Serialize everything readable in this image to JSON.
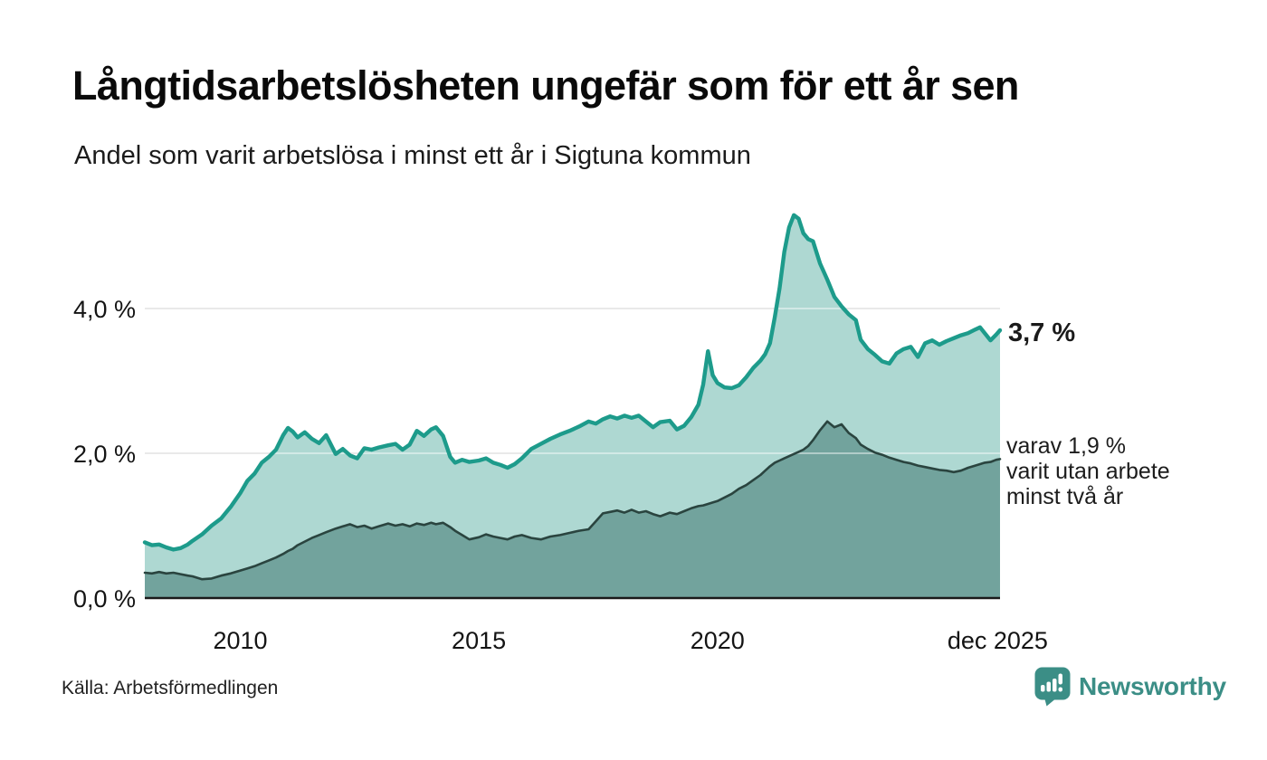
{
  "header": {
    "title": "Långtidsarbetslösheten ungefär som för ett år sen",
    "subtitle": "Andel som varit arbetslösa i minst ett år i Sigtuna kommun"
  },
  "annotations": {
    "latest_value": "3,7 %",
    "secondary": "varav 1,9 %\nvarit utan arbete\nminst två år"
  },
  "footer": {
    "source": "Källa: Arbetsförmedlingen",
    "brand": "Newsworthy",
    "brand_color": "#3b8e86",
    "logo_icon": "bar-chart-speech-bubble-icon"
  },
  "chart_data": {
    "type": "area",
    "title": "Långtidsarbetslösheten ungefär som för ett år sen",
    "xlabel": "",
    "ylabel": "",
    "xlim": [
      2008.0,
      2025.92
    ],
    "ylim": [
      0,
      5.6
    ],
    "grid": true,
    "gridline_color": "#d8d8d8",
    "axis_color": "#1a1a1a",
    "yticks": [
      {
        "label": "0,0 %",
        "value": 0
      },
      {
        "label": "2,0 %",
        "value": 2
      },
      {
        "label": "4,0 %",
        "value": 4
      }
    ],
    "xticks": [
      {
        "label": "2010",
        "year": 2010
      },
      {
        "label": "2015",
        "year": 2015
      },
      {
        "label": "2020",
        "year": 2020
      },
      {
        "label": "dec 2025",
        "year": 2025.87
      }
    ],
    "x": [
      2008.0,
      2008.15,
      2008.3,
      2008.45,
      2008.6,
      2008.75,
      2008.9,
      2009.0,
      2009.2,
      2009.4,
      2009.6,
      2009.8,
      2010.0,
      2010.15,
      2010.3,
      2010.45,
      2010.6,
      2010.75,
      2010.9,
      2011.0,
      2011.1,
      2011.2,
      2011.35,
      2011.5,
      2011.65,
      2011.8,
      2012.0,
      2012.15,
      2012.3,
      2012.45,
      2012.6,
      2012.75,
      2012.9,
      2013.1,
      2013.25,
      2013.4,
      2013.55,
      2013.7,
      2013.85,
      2014.0,
      2014.1,
      2014.25,
      2014.4,
      2014.5,
      2014.65,
      2014.8,
      2015.0,
      2015.15,
      2015.3,
      2015.45,
      2015.6,
      2015.75,
      2015.9,
      2016.1,
      2016.3,
      2016.5,
      2016.7,
      2016.9,
      2017.1,
      2017.3,
      2017.45,
      2017.6,
      2017.75,
      2017.9,
      2018.05,
      2018.2,
      2018.35,
      2018.5,
      2018.65,
      2018.8,
      2019.0,
      2019.15,
      2019.3,
      2019.45,
      2019.6,
      2019.7,
      2019.8,
      2019.9,
      2020.0,
      2020.15,
      2020.3,
      2020.45,
      2020.6,
      2020.75,
      2020.9,
      2021.0,
      2021.1,
      2021.2,
      2021.3,
      2021.4,
      2021.5,
      2021.6,
      2021.7,
      2021.8,
      2021.9,
      2022.0,
      2022.15,
      2022.3,
      2022.45,
      2022.6,
      2022.75,
      2022.9,
      2023.0,
      2023.15,
      2023.3,
      2023.45,
      2023.6,
      2023.75,
      2023.9,
      2024.05,
      2024.2,
      2024.35,
      2024.5,
      2024.65,
      2024.8,
      2024.95,
      2025.1,
      2025.25,
      2025.4,
      2025.5,
      2025.6,
      2025.72,
      2025.84,
      2025.92
    ],
    "series": [
      {
        "name": "Andel arbetslösa minst ett år",
        "line_color": "#1d9b8b",
        "fill_color": "#aed8d2",
        "latest_label": "3,7 %",
        "values": [
          0.77,
          0.73,
          0.74,
          0.7,
          0.67,
          0.69,
          0.74,
          0.79,
          0.88,
          1.0,
          1.1,
          1.26,
          1.45,
          1.62,
          1.72,
          1.87,
          1.95,
          2.05,
          2.25,
          2.35,
          2.3,
          2.22,
          2.29,
          2.2,
          2.14,
          2.25,
          1.99,
          2.06,
          1.97,
          1.93,
          2.07,
          2.05,
          2.08,
          2.11,
          2.13,
          2.05,
          2.12,
          2.31,
          2.24,
          2.33,
          2.36,
          2.24,
          1.95,
          1.87,
          1.91,
          1.88,
          1.9,
          1.93,
          1.87,
          1.84,
          1.8,
          1.85,
          1.93,
          2.06,
          2.13,
          2.2,
          2.26,
          2.31,
          2.37,
          2.44,
          2.41,
          2.47,
          2.51,
          2.48,
          2.52,
          2.49,
          2.52,
          2.44,
          2.36,
          2.43,
          2.45,
          2.33,
          2.38,
          2.5,
          2.67,
          2.95,
          3.41,
          3.08,
          2.97,
          2.91,
          2.9,
          2.94,
          3.05,
          3.18,
          3.28,
          3.37,
          3.52,
          3.88,
          4.28,
          4.78,
          5.12,
          5.29,
          5.24,
          5.04,
          4.96,
          4.93,
          4.62,
          4.4,
          4.16,
          4.03,
          3.92,
          3.84,
          3.57,
          3.44,
          3.36,
          3.27,
          3.24,
          3.38,
          3.44,
          3.47,
          3.33,
          3.52,
          3.56,
          3.5,
          3.55,
          3.59,
          3.63,
          3.66,
          3.71,
          3.74,
          3.66,
          3.56,
          3.64,
          3.7
        ]
      },
      {
        "name": "Andel arbetslösa minst två år",
        "line_color": "#2a443f",
        "fill_color": "#72a39d",
        "latest_label": "1,9 %",
        "values": [
          0.35,
          0.34,
          0.36,
          0.34,
          0.35,
          0.33,
          0.31,
          0.3,
          0.26,
          0.27,
          0.31,
          0.34,
          0.38,
          0.41,
          0.44,
          0.48,
          0.52,
          0.56,
          0.61,
          0.65,
          0.68,
          0.73,
          0.78,
          0.83,
          0.87,
          0.91,
          0.96,
          0.99,
          1.02,
          0.98,
          1.0,
          0.96,
          0.99,
          1.03,
          1.0,
          1.02,
          0.99,
          1.03,
          1.01,
          1.04,
          1.02,
          1.04,
          0.98,
          0.93,
          0.87,
          0.81,
          0.84,
          0.88,
          0.85,
          0.83,
          0.81,
          0.85,
          0.87,
          0.83,
          0.81,
          0.85,
          0.87,
          0.9,
          0.93,
          0.95,
          1.06,
          1.17,
          1.19,
          1.21,
          1.18,
          1.22,
          1.18,
          1.2,
          1.16,
          1.13,
          1.18,
          1.16,
          1.2,
          1.24,
          1.27,
          1.28,
          1.3,
          1.32,
          1.34,
          1.39,
          1.44,
          1.51,
          1.56,
          1.63,
          1.7,
          1.76,
          1.82,
          1.87,
          1.9,
          1.93,
          1.96,
          1.99,
          2.02,
          2.05,
          2.1,
          2.18,
          2.32,
          2.44,
          2.36,
          2.4,
          2.28,
          2.21,
          2.12,
          2.06,
          2.01,
          1.98,
          1.94,
          1.91,
          1.88,
          1.86,
          1.83,
          1.81,
          1.79,
          1.77,
          1.76,
          1.74,
          1.76,
          1.8,
          1.83,
          1.85,
          1.87,
          1.88,
          1.91,
          1.92
        ]
      }
    ]
  }
}
